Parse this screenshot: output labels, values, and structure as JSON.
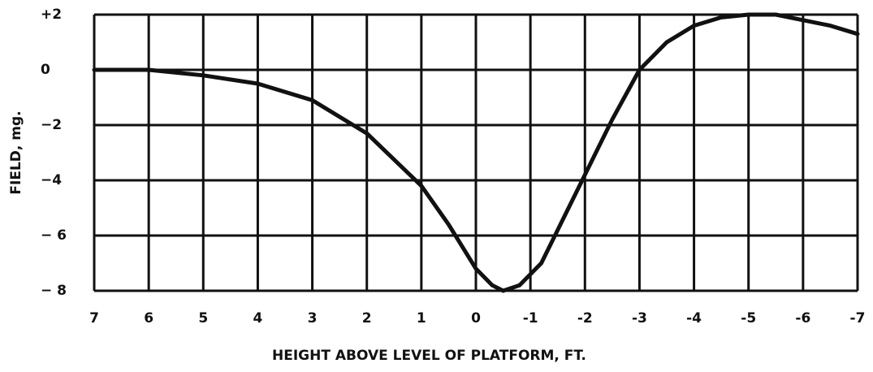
{
  "chart_data": {
    "type": "line",
    "x_label": "HEIGHT ABOVE LEVEL OF PLATFORM, FT.",
    "y_label": "FIELD, mg.",
    "series": [
      {
        "color": "#111111",
        "x": [
          7,
          6,
          5,
          4,
          3,
          2,
          1,
          0.5,
          0,
          -0.3,
          -0.5,
          -0.8,
          -1.2,
          -1.5,
          -2,
          -2.5,
          -3,
          -3.5,
          -4,
          -4.5,
          -5,
          -5.5,
          -6,
          -6.5,
          -7
        ],
        "values": [
          0,
          0,
          -0.2,
          -0.5,
          -1.1,
          -2.3,
          -4.2,
          -5.6,
          -7.2,
          -7.8,
          -8,
          -7.8,
          -7,
          -5.8,
          -3.8,
          -1.8,
          0,
          1,
          1.6,
          1.9,
          2,
          2,
          1.8,
          1.6,
          1.3
        ]
      }
    ],
    "xlim": [
      7,
      -7
    ],
    "ylim": [
      -8,
      2
    ],
    "xticks": [
      7,
      6,
      5,
      4,
      3,
      2,
      1,
      0,
      -1,
      -2,
      -3,
      -4,
      -5,
      -6,
      -7
    ],
    "yticks": [
      {
        "value": -8,
        "label": "− 8"
      },
      {
        "value": -6,
        "label": "− 6"
      },
      {
        "value": -4,
        "label": "−4"
      },
      {
        "value": -2,
        "label": "−2"
      },
      0,
      {
        "value": 2,
        "label": "+2"
      }
    ],
    "grid": true
  }
}
